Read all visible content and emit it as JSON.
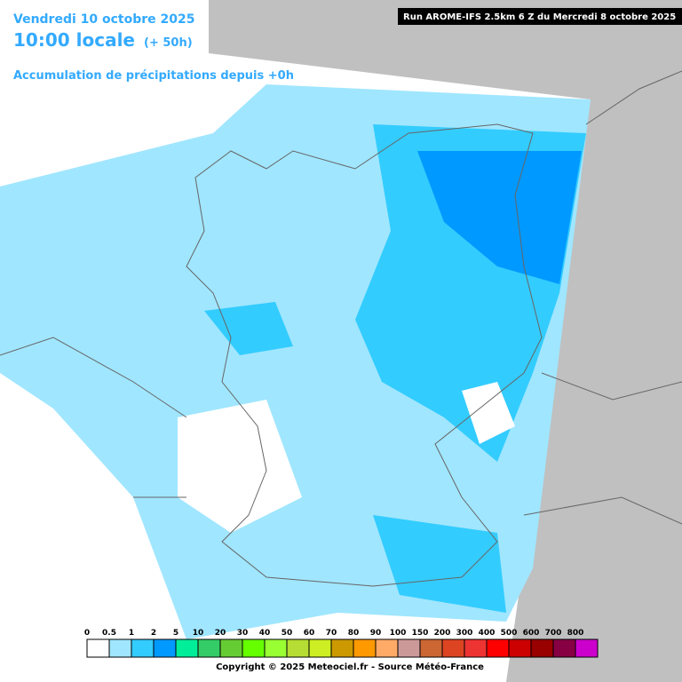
{
  "header": {
    "date": "Vendredi 10 octobre 2025",
    "time": "10:00 locale",
    "lead": "(+ 50h)",
    "product": "Accumulation de précipitations depuis +0h",
    "run": "Run AROME-IFS 2.5km 6 Z du Mercredi 8 octobre 2025"
  },
  "legend": {
    "labels": [
      "0",
      "0.5",
      "1",
      "2",
      "5",
      "10",
      "20",
      "30",
      "40",
      "50",
      "60",
      "70",
      "80",
      "90",
      "100",
      "150",
      "200",
      "300",
      "400",
      "500",
      "600",
      "700",
      "800"
    ],
    "colors": [
      "#ffffff",
      "#a0e6ff",
      "#33ccff",
      "#0099ff",
      "#00ee99",
      "#33cc66",
      "#66cc33",
      "#66ff00",
      "#99ff33",
      "#b5dd33",
      "#ccee22",
      "#cc9900",
      "#ff9900",
      "#ffaa66",
      "#cc9999",
      "#cc6633",
      "#dd4422",
      "#ee3333",
      "#ff0000",
      "#cc0000",
      "#990000",
      "#880044",
      "#cc00cc"
    ]
  },
  "footer": {
    "copyright": "Copyright © 2025 Meteociel.fr - Source Météo-France"
  }
}
